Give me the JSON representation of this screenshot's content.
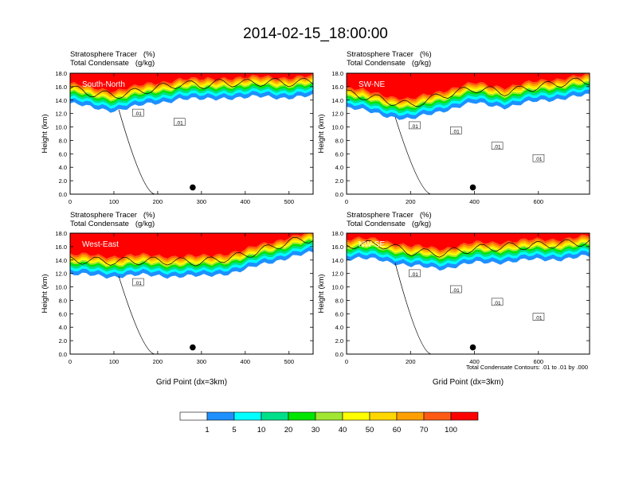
{
  "title": "2014-02-15_18:00:00",
  "footnote": "Total Condensate Contours: .01 to .01 by .000",
  "colors": {
    "levels": [
      "#ffffff",
      "#1e90ff",
      "#00ffff",
      "#00e08a",
      "#00e600",
      "#a0e632",
      "#ffff00",
      "#ffd700",
      "#ffa000",
      "#ff5a14",
      "#ff0000"
    ],
    "contour": "#000000",
    "marker": "#000000"
  },
  "colorbar": {
    "tick_labels": [
      "1",
      "5",
      "10",
      "20",
      "30",
      "40",
      "50",
      "60",
      "70",
      "100"
    ]
  },
  "chart_data": [
    {
      "type": "heatmap",
      "panel_label": "South-North",
      "header_line1": "Stratosphere Tracer   (%)",
      "header_line2": "Total Condensate   (g/kg)",
      "ylabel": "Height (km)",
      "xlabel": "",
      "xlim": [
        0,
        555
      ],
      "ylim": [
        0,
        18
      ],
      "x_ticks": [
        "0",
        "100",
        "200",
        "300",
        "400",
        "500"
      ],
      "y_ticks": [
        "0.0",
        "2.0",
        "4.0",
        "6.0",
        "8.0",
        "10.0",
        "12.0",
        "14.0",
        "16.0",
        "18.0"
      ],
      "contour_labels": [
        ".01",
        ".01"
      ],
      "marker": {
        "x": 280,
        "y": 1.0
      },
      "tracer_base_km": [
        [
          0,
          13.5
        ],
        [
          50,
          12.8
        ],
        [
          100,
          12.5
        ],
        [
          150,
          13.0
        ],
        [
          200,
          13.6
        ],
        [
          250,
          14.2
        ],
        [
          300,
          14.0
        ],
        [
          350,
          14.4
        ],
        [
          400,
          14.3
        ],
        [
          450,
          14.5
        ],
        [
          500,
          14.4
        ],
        [
          555,
          14.5
        ]
      ]
    },
    {
      "type": "heatmap",
      "panel_label": "SW-NE",
      "header_line1": "Stratosphere Tracer   (%)",
      "header_line2": "Total Condensate   (g/kg)",
      "ylabel": "Height (km)",
      "xlabel": "",
      "xlim": [
        0,
        760
      ],
      "ylim": [
        0,
        18
      ],
      "x_ticks": [
        "0",
        "200",
        "400",
        "600"
      ],
      "y_ticks": [
        "0.0",
        "2.0",
        "4.0",
        "6.0",
        "8.0",
        "10.0",
        "12.0",
        "14.0",
        "16.0",
        "18.0"
      ],
      "contour_labels": [
        ".01",
        ".01",
        ".01",
        ".01"
      ],
      "marker": {
        "x": 395,
        "y": 1.0
      },
      "tracer_base_km": [
        [
          0,
          12.8
        ],
        [
          100,
          12.0
        ],
        [
          200,
          11.0
        ],
        [
          300,
          12.5
        ],
        [
          400,
          13.5
        ],
        [
          500,
          13.0
        ],
        [
          600,
          13.8
        ],
        [
          700,
          14.5
        ],
        [
          760,
          14.6
        ]
      ]
    },
    {
      "type": "heatmap",
      "panel_label": "West-East",
      "header_line1": "Stratosphere Tracer   (%)",
      "header_line2": "Total Condensate   (g/kg)",
      "ylabel": "Height (km)",
      "xlabel": "Grid Point (dx=3km)",
      "xlim": [
        0,
        555
      ],
      "ylim": [
        0,
        18
      ],
      "x_ticks": [
        "0",
        "100",
        "200",
        "300",
        "400",
        "500"
      ],
      "y_ticks": [
        "0.0",
        "2.0",
        "4.0",
        "6.0",
        "8.0",
        "10.0",
        "12.0",
        "14.0",
        "16.0",
        "18.0"
      ],
      "contour_labels": [
        ".01"
      ],
      "marker": {
        "x": 280,
        "y": 1.0
      },
      "tracer_base_km": [
        [
          0,
          11.8
        ],
        [
          100,
          11.6
        ],
        [
          200,
          11.7
        ],
        [
          300,
          11.5
        ],
        [
          400,
          12.5
        ],
        [
          500,
          14.5
        ],
        [
          555,
          15.0
        ]
      ]
    },
    {
      "type": "heatmap",
      "panel_label": "NW-SE",
      "header_line1": "Stratosphere Tracer   (%)",
      "header_line2": "Total Condensate   (g/kg)",
      "ylabel": "Height (km)",
      "xlabel": "Grid Point (dx=3km)",
      "xlim": [
        0,
        760
      ],
      "ylim": [
        0,
        18
      ],
      "x_ticks": [
        "0",
        "200",
        "400",
        "600"
      ],
      "y_ticks": [
        "0.0",
        "2.0",
        "4.0",
        "6.0",
        "8.0",
        "10.0",
        "12.0",
        "14.0",
        "16.0",
        "18.0"
      ],
      "contour_labels": [
        ".01",
        ".01",
        ".01",
        ".01"
      ],
      "marker": {
        "x": 395,
        "y": 1.0
      },
      "tracer_base_km": [
        [
          0,
          14.0
        ],
        [
          100,
          14.2
        ],
        [
          200,
          13.0
        ],
        [
          300,
          12.8
        ],
        [
          400,
          13.5
        ],
        [
          500,
          13.8
        ],
        [
          600,
          14.0
        ],
        [
          700,
          14.3
        ],
        [
          760,
          14.5
        ]
      ]
    }
  ]
}
